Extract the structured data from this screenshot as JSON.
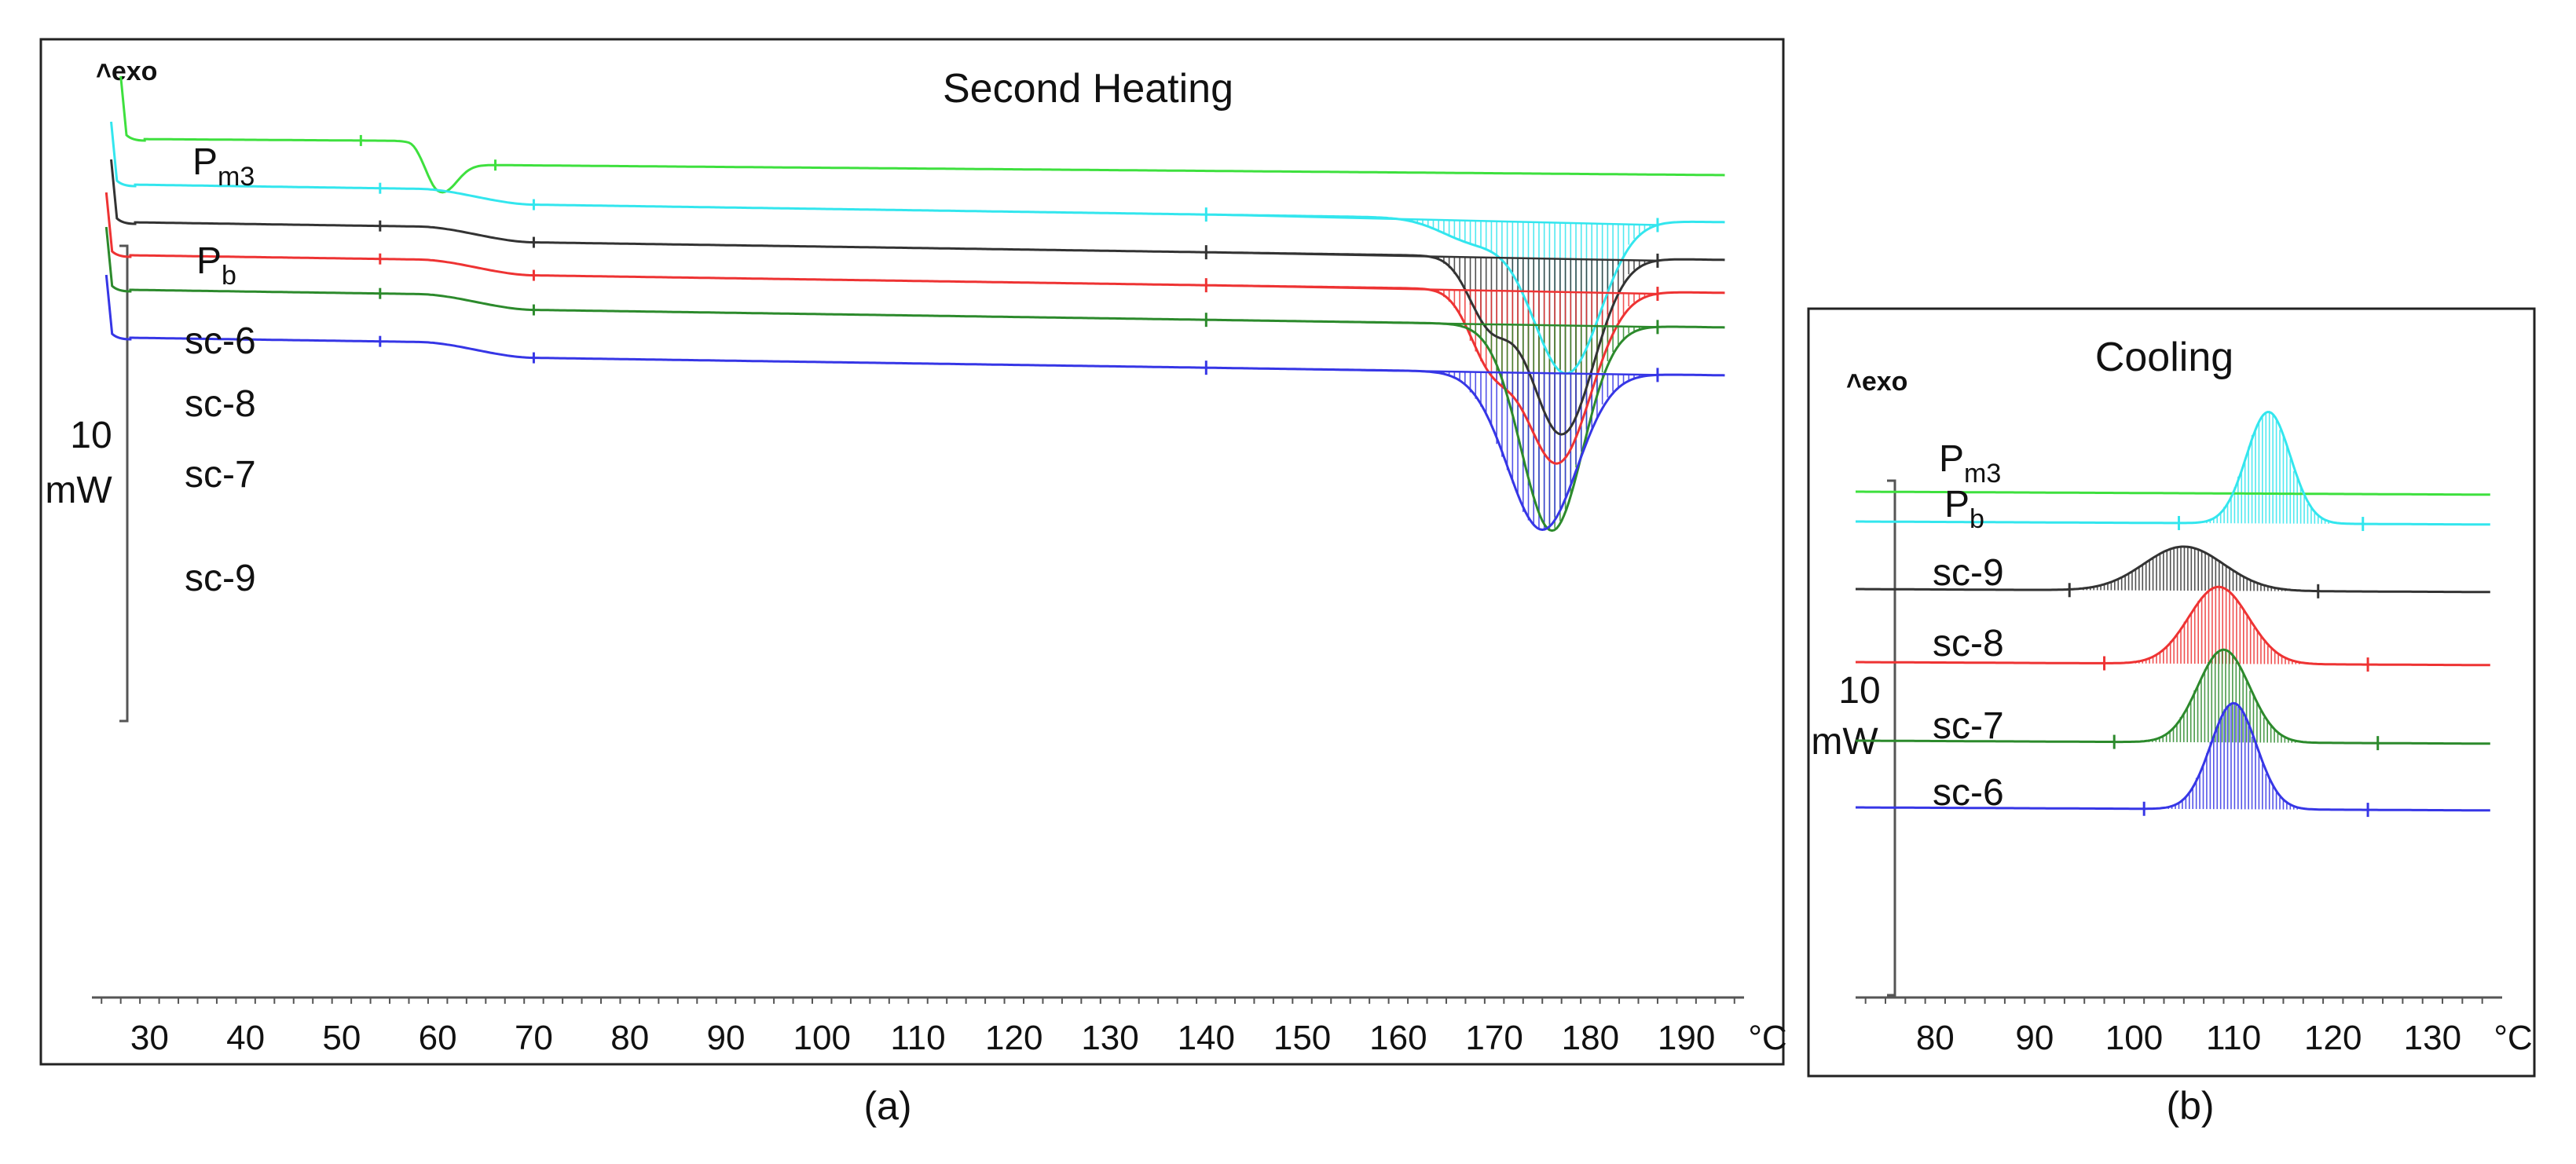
{
  "chart_data": [
    {
      "id": "a",
      "type": "line",
      "title": "Second Heating",
      "exo_label": "exo",
      "caption": "(a)",
      "x_unit": "°C",
      "xlim": [
        24,
        196
      ],
      "x_ticks": [
        30,
        40,
        50,
        60,
        70,
        80,
        90,
        100,
        110,
        120,
        130,
        140,
        150,
        160,
        170,
        180,
        190
      ],
      "scale_bar": {
        "value": "10",
        "unit": "mW"
      },
      "integration_limits": [
        140,
        187
      ],
      "series": [
        {
          "name": "Pm3",
          "label_main": "P",
          "label_sub": "m3",
          "color": "#3ee03e",
          "start_temp": 27,
          "onset_y": 78,
          "level": 110,
          "end_level": 153,
          "step_start": 56,
          "step_end": 66,
          "peak_temp": 60.5,
          "peak_depth": 22,
          "peak_width": 1.5,
          "transition_drop": 30
        },
        {
          "name": "Pb",
          "label_main": "P",
          "label_sub": "b",
          "color": "#33e6ee",
          "start_temp": 26,
          "onset_y": 100,
          "level": 168,
          "end_level": 213,
          "step_start": 58,
          "step_end": 70,
          "peak_temp": 177.5,
          "peak_depth": 195,
          "peak_width": 3.5,
          "transition_drop": 20
        },
        {
          "name": "sc-6",
          "label_main": "sc-6",
          "label_sub": "",
          "color": "#333333",
          "start_temp": 26,
          "onset_y": 142,
          "level": 218,
          "end_level": 255,
          "step_start": 58,
          "step_end": 70,
          "peak_temp": 177,
          "peak_depth": 225,
          "peak_width": 3.3,
          "transition_drop": 20
        },
        {
          "name": "sc-8",
          "label_main": "sc-8",
          "label_sub": "",
          "color": "#ee3333",
          "start_temp": 25.5,
          "onset_y": 176,
          "level": 252,
          "end_level": 295,
          "step_start": 58,
          "step_end": 70,
          "peak_temp": 176.5,
          "peak_depth": 220,
          "peak_width": 3.5,
          "transition_drop": 20
        },
        {
          "name": "sc-7",
          "label_main": "sc-7",
          "label_sub": "",
          "color": "#2c8a2c",
          "start_temp": 25.5,
          "onset_y": 220,
          "level": 295,
          "end_level": 338,
          "step_start": 58,
          "step_end": 70,
          "peak_temp": 176,
          "peak_depth": 262,
          "peak_width": 3.2,
          "transition_drop": 20
        },
        {
          "name": "sc-9",
          "label_main": "sc-9",
          "label_sub": "",
          "color": "#3636e6",
          "start_temp": 25.5,
          "onset_y": 280,
          "level": 360,
          "end_level": 395,
          "step_start": 58,
          "step_end": 70,
          "peak_temp": 175,
          "peak_depth": 200,
          "peak_width": 3.6,
          "transition_drop": 20
        }
      ]
    },
    {
      "id": "b",
      "type": "line",
      "title": "Cooling",
      "exo_label": "exo",
      "caption": "(b)",
      "x_unit": "°C",
      "xlim": [
        72,
        137
      ],
      "x_ticks": [
        80,
        90,
        100,
        110,
        120,
        130
      ],
      "scale_bar": {
        "value": "10",
        "unit": "mW"
      },
      "series": [
        {
          "name": "Pm3",
          "label_main": "P",
          "label_sub": "m3",
          "color": "#3ee03e",
          "level": 0,
          "peak_temp": 0,
          "peak_height": 0,
          "peak_width": 0,
          "lim_lo": 0,
          "lim_hi": 0
        },
        {
          "name": "Pb",
          "label_main": "P",
          "label_sub": "b",
          "color": "#33e6ee",
          "level": 0,
          "peak_temp": 113.5,
          "peak_height": 142,
          "peak_width": 2.2,
          "lim_lo": 104.5,
          "lim_hi": 123
        },
        {
          "name": "sc-9",
          "label_main": "sc-9",
          "label_sub": "",
          "color": "#333333",
          "level": 0,
          "peak_temp": 105,
          "peak_height": 56,
          "peak_width": 4,
          "lim_lo": 93.5,
          "lim_hi": 118.5
        },
        {
          "name": "sc-8",
          "label_main": "sc-8",
          "label_sub": "",
          "color": "#ee3333",
          "level": 0,
          "peak_temp": 108.5,
          "peak_height": 98,
          "peak_width": 3,
          "lim_lo": 97,
          "lim_hi": 123.5
        },
        {
          "name": "sc-7",
          "label_main": "sc-7",
          "label_sub": "",
          "color": "#2c8a2c",
          "level": 0,
          "peak_temp": 109,
          "peak_height": 118,
          "peak_width": 2.6,
          "lim_lo": 98,
          "lim_hi": 124.5
        },
        {
          "name": "sc-6",
          "label_main": "sc-6",
          "label_sub": "",
          "color": "#3636e6",
          "level": 0,
          "peak_temp": 110,
          "peak_height": 135,
          "peak_width": 2.3,
          "lim_lo": 101,
          "lim_hi": 123.5
        }
      ]
    }
  ]
}
